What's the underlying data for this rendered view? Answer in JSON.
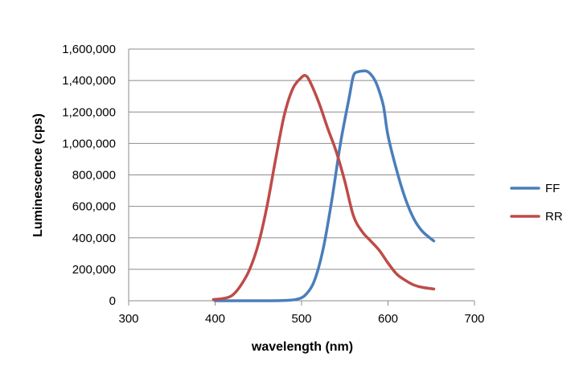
{
  "chart_data": {
    "type": "line",
    "title": "",
    "xlabel": "wavelength (nm)",
    "ylabel": "Luminescence (cps)",
    "xlim": [
      300,
      700
    ],
    "ylim": [
      0,
      1600000
    ],
    "x_ticks": [
      300,
      400,
      500,
      600,
      700
    ],
    "y_ticks": [
      0,
      200000,
      400000,
      600000,
      800000,
      1000000,
      1200000,
      1400000,
      1600000
    ],
    "grid": true,
    "legend_position": "right",
    "series": [
      {
        "name": "FF",
        "color": "#4a7ebb",
        "x": [
          400,
          420,
          440,
          460,
          480,
          495,
          505,
          515,
          525,
          535,
          545,
          555,
          560,
          565,
          570,
          575,
          580,
          585,
          590,
          595,
          600,
          610,
          620,
          630,
          640,
          653
        ],
        "y": [
          0,
          0,
          0,
          0,
          2000,
          10000,
          40000,
          130000,
          330000,
          640000,
          1000000,
          1290000,
          1430000,
          1455000,
          1460000,
          1460000,
          1440000,
          1400000,
          1330000,
          1230000,
          1050000,
          830000,
          650000,
          520000,
          440000,
          380000
        ]
      },
      {
        "name": "RR",
        "color": "#be4b48",
        "x": [
          398,
          410,
          420,
          430,
          440,
          450,
          460,
          470,
          480,
          490,
          500,
          505,
          510,
          520,
          530,
          540,
          550,
          560,
          570,
          580,
          590,
          600,
          610,
          620,
          630,
          640,
          653
        ],
        "y": [
          8000,
          15000,
          35000,
          100000,
          200000,
          360000,
          600000,
          900000,
          1180000,
          1350000,
          1420000,
          1430000,
          1390000,
          1260000,
          1100000,
          950000,
          760000,
          540000,
          440000,
          380000,
          320000,
          240000,
          170000,
          130000,
          100000,
          85000,
          75000
        ]
      }
    ]
  }
}
